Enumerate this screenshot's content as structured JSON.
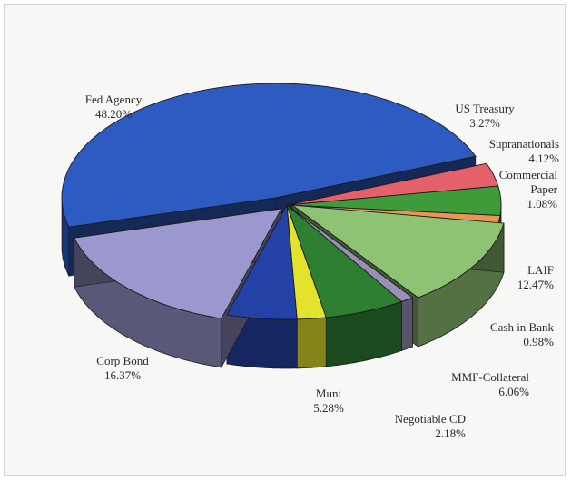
{
  "chart_data": {
    "type": "pie",
    "style": "3d-exploded",
    "slices": [
      {
        "label": "Fed Agency",
        "value": 48.2,
        "value_label": "48.20%",
        "color": "#2e5bc2"
      },
      {
        "label": "US Treasury",
        "value": 3.27,
        "value_label": "3.27%",
        "color": "#e4616b"
      },
      {
        "label": "Supranationals",
        "value": 4.12,
        "value_label": "4.12%",
        "color": "#3f9a3a"
      },
      {
        "label": "Commercial Paper",
        "value": 1.08,
        "value_label": "1.08%",
        "color": "#e89651"
      },
      {
        "label": "LAIF",
        "value": 12.47,
        "value_label": "12.47%",
        "color": "#8fc374"
      },
      {
        "label": "Cash in Bank",
        "value": 0.98,
        "value_label": "0.98%",
        "color": "#9a8fb8"
      },
      {
        "label": "MMF-Collateral",
        "value": 6.06,
        "value_label": "6.06%",
        "color": "#2f7f33"
      },
      {
        "label": "Negotiable CD",
        "value": 2.18,
        "value_label": "2.18%",
        "color": "#e3e32d"
      },
      {
        "label": "Muni",
        "value": 5.28,
        "value_label": "5.28%",
        "color": "#2442a6"
      },
      {
        "label": "Corp Bond",
        "value": 16.37,
        "value_label": "16.37%",
        "color": "#9b98cf"
      }
    ],
    "legend": "none"
  }
}
